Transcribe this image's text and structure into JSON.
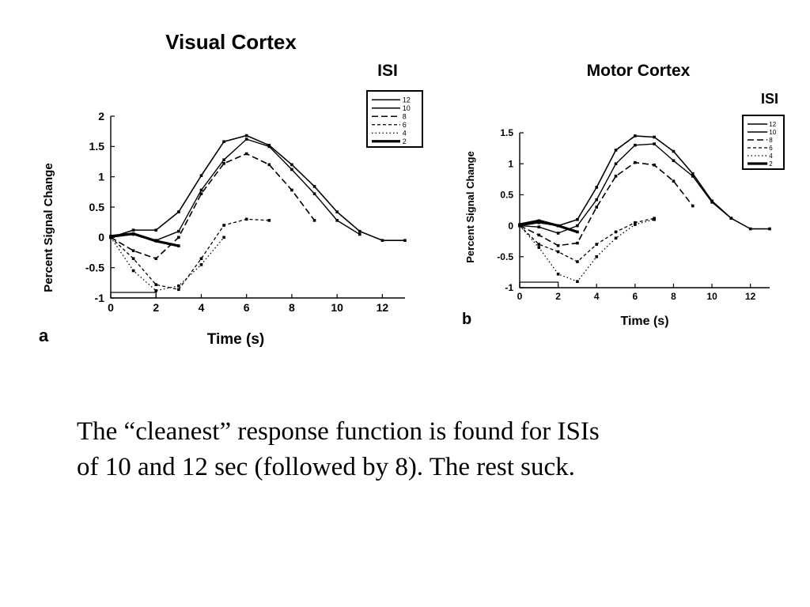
{
  "chart_data": [
    {
      "type": "line",
      "title": "Visual Cortex",
      "panel_label": "a",
      "xlabel": "Time (s)",
      "ylabel": "Percent Signal Change",
      "xlim": [
        0,
        13
      ],
      "ylim": [
        -1,
        2
      ],
      "xticks": [
        0,
        2,
        4,
        6,
        8,
        10,
        12
      ],
      "yticks": [
        2,
        1.5,
        1,
        0.5,
        0,
        -0.5,
        -1
      ],
      "legend_title": "ISI",
      "legend_position": "top-right",
      "grid": false,
      "series": [
        {
          "name": "12",
          "x": [
            0,
            1,
            2,
            3,
            4,
            5,
            6,
            7,
            8,
            9,
            10,
            11,
            12,
            13
          ],
          "y": [
            0,
            0.12,
            0.12,
            0.42,
            1.02,
            1.58,
            1.68,
            1.52,
            1.2,
            0.84,
            0.42,
            0.1,
            -0.05,
            -0.05
          ]
        },
        {
          "name": "10",
          "x": [
            0,
            1,
            2,
            3,
            4,
            5,
            6,
            7,
            8,
            9,
            10,
            11
          ],
          "y": [
            0,
            0.05,
            -0.05,
            0.1,
            0.78,
            1.28,
            1.62,
            1.5,
            1.12,
            0.72,
            0.28,
            0.05
          ]
        },
        {
          "name": "8",
          "x": [
            0,
            1,
            2,
            3,
            4,
            5,
            6,
            7,
            8,
            9
          ],
          "y": [
            0,
            -0.22,
            -0.35,
            0.0,
            0.72,
            1.22,
            1.38,
            1.2,
            0.78,
            0.28
          ]
        },
        {
          "name": "6",
          "x": [
            0,
            1,
            2,
            3,
            4,
            5,
            6,
            7
          ],
          "y": [
            0,
            -0.35,
            -0.78,
            -0.86,
            -0.35,
            0.2,
            0.3,
            0.28
          ]
        },
        {
          "name": "4",
          "x": [
            0,
            1,
            2,
            3,
            4,
            5
          ],
          "y": [
            0,
            -0.55,
            -0.88,
            -0.8,
            -0.45,
            0.0
          ]
        },
        {
          "name": "2",
          "x": [
            0,
            1,
            2,
            3
          ],
          "y": [
            0.02,
            0.06,
            -0.06,
            -0.14
          ]
        }
      ]
    },
    {
      "type": "line",
      "title": "Motor Cortex",
      "panel_label": "b",
      "xlabel": "Time (s)",
      "ylabel": "Percent Signal Change",
      "xlim": [
        0,
        13
      ],
      "ylim": [
        -1,
        1.5
      ],
      "xticks": [
        0,
        2,
        4,
        6,
        8,
        10,
        12
      ],
      "yticks": [
        1.5,
        1,
        0.5,
        0,
        -0.5,
        -1
      ],
      "legend_title": "ISI",
      "legend_position": "top-right",
      "grid": false,
      "series": [
        {
          "name": "12",
          "x": [
            0,
            1,
            2,
            3,
            4,
            5,
            6,
            7,
            8,
            9,
            10,
            11,
            12,
            13
          ],
          "y": [
            0,
            0.05,
            0.0,
            0.1,
            0.62,
            1.22,
            1.45,
            1.43,
            1.2,
            0.84,
            0.4,
            0.12,
            -0.05,
            -0.05
          ]
        },
        {
          "name": "10",
          "x": [
            0,
            1,
            2,
            3,
            4,
            5,
            6,
            7,
            8,
            9,
            10,
            11
          ],
          "y": [
            0,
            -0.02,
            -0.12,
            0.0,
            0.42,
            1.0,
            1.3,
            1.32,
            1.05,
            0.8,
            0.38,
            0.12
          ]
        },
        {
          "name": "8",
          "x": [
            0,
            1,
            2,
            3,
            4,
            5,
            6,
            7,
            8,
            9
          ],
          "y": [
            0,
            -0.15,
            -0.32,
            -0.28,
            0.3,
            0.8,
            1.02,
            0.98,
            0.72,
            0.32
          ]
        },
        {
          "name": "6",
          "x": [
            0,
            1,
            2,
            3,
            4,
            5,
            6,
            7
          ],
          "y": [
            0,
            -0.3,
            -0.42,
            -0.58,
            -0.3,
            -0.1,
            0.05,
            0.12
          ]
        },
        {
          "name": "4",
          "x": [
            0,
            1,
            2,
            3,
            4,
            5,
            6,
            7
          ],
          "y": [
            0,
            -0.35,
            -0.78,
            -0.9,
            -0.5,
            -0.2,
            0.02,
            0.1
          ]
        },
        {
          "name": "2",
          "x": [
            0,
            1,
            2,
            3
          ],
          "y": [
            0.02,
            0.08,
            0.0,
            -0.1
          ]
        }
      ]
    }
  ],
  "caption": {
    "line1": "The “cleanest” response function is found for ISIs",
    "line2": "of 10 and 12 sec (followed by 8).  The rest suck."
  }
}
